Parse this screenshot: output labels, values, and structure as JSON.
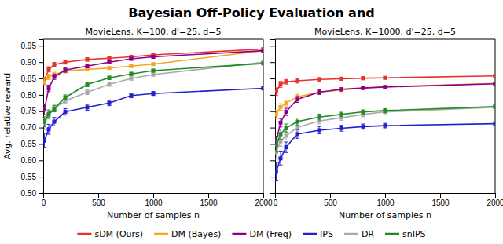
{
  "chart_data": [
    {
      "type": "line",
      "title": "Bayesian Off-Policy Evaluation and",
      "subtitle": "MovieLens, K=100, d'=25, d=5",
      "x_label": "Number of samples n",
      "y_label": "Avg. relative reward",
      "x": [
        10,
        50,
        100,
        200,
        400,
        600,
        800,
        1000,
        2000
      ],
      "xlim": [
        0,
        2000
      ],
      "xticks": [
        0,
        500,
        1000,
        1500,
        2000
      ],
      "ylim": [
        0.5,
        0.97
      ],
      "yticks": [
        {
          "value": 0.5,
          "label": "0.50"
        },
        0.55,
        {
          "value": 0.6,
          "label": "0.60"
        },
        0.65,
        {
          "value": 0.7,
          "label": "0.70"
        },
        0.75,
        {
          "value": 0.8,
          "label": "0.80"
        },
        0.85,
        {
          "value": 0.9,
          "label": "0.90"
        },
        0.95
      ],
      "grid": false,
      "legend": "bottom",
      "marker": "square",
      "series": [
        {
          "name": "sDM (Ours)",
          "color": "#e8312a",
          "values": [
            0.843,
            0.878,
            0.892,
            0.9,
            0.908,
            0.912,
            0.916,
            0.922,
            0.94
          ],
          "errors": [
            0.01,
            0.008,
            0.007,
            0.006,
            0.005,
            0.005,
            0.004,
            0.004,
            0.003
          ]
        },
        {
          "name": "DM (Bayes)",
          "color": "#f5a623",
          "values": [
            0.838,
            0.855,
            0.862,
            0.873,
            0.878,
            0.882,
            0.888,
            0.894,
            0.935
          ],
          "errors": [
            0.01,
            0.008,
            0.007,
            0.006,
            0.005,
            0.004,
            0.004,
            0.003,
            0.003
          ]
        },
        {
          "name": "DM (Freq)",
          "color": "#8b008b",
          "values": [
            0.755,
            0.82,
            0.855,
            0.876,
            0.888,
            0.9,
            0.91,
            0.916,
            0.935
          ],
          "errors": [
            0.015,
            0.01,
            0.008,
            0.007,
            0.005,
            0.004,
            0.004,
            0.003,
            0.003
          ]
        },
        {
          "name": "IPS",
          "color": "#2222cc",
          "values": [
            0.66,
            0.695,
            0.718,
            0.748,
            0.762,
            0.775,
            0.798,
            0.804,
            0.82
          ],
          "errors": [
            0.022,
            0.015,
            0.013,
            0.01,
            0.009,
            0.008,
            0.007,
            0.006,
            0.005
          ]
        },
        {
          "name": "DR",
          "color": "#aaaaaa",
          "values": [
            0.71,
            0.738,
            0.758,
            0.782,
            0.808,
            0.832,
            0.85,
            0.862,
            0.9
          ],
          "errors": [
            0.016,
            0.012,
            0.01,
            0.008,
            0.007,
            0.006,
            0.005,
            0.005,
            0.004
          ]
        },
        {
          "name": "snIPS",
          "color": "#228b22",
          "values": [
            0.718,
            0.742,
            0.758,
            0.792,
            0.832,
            0.852,
            0.864,
            0.874,
            0.896
          ],
          "errors": [
            0.015,
            0.012,
            0.01,
            0.008,
            0.007,
            0.005,
            0.005,
            0.004,
            0.003
          ]
        }
      ]
    },
    {
      "type": "line",
      "subtitle": "MovieLens, K=1000, d'=25, d=5",
      "x_label": "Number of samples n",
      "x": [
        10,
        50,
        100,
        200,
        400,
        600,
        800,
        1000,
        2000
      ],
      "xlim": [
        0,
        2000
      ],
      "xticks": [
        0,
        500,
        1000,
        1500,
        2000
      ],
      "ylim": [
        0.5,
        0.97
      ],
      "yticks": [
        0.5,
        0.55,
        0.6,
        0.65,
        0.7,
        0.75,
        0.8,
        0.85,
        0.9,
        0.95
      ],
      "tick_labels": "x",
      "grid": false,
      "marker": "square",
      "series": [
        {
          "name": "sDM (Ours)",
          "color": "#e8312a",
          "values": [
            0.81,
            0.832,
            0.84,
            0.843,
            0.847,
            0.849,
            0.851,
            0.852,
            0.858
          ],
          "errors": [
            0.012,
            0.009,
            0.007,
            0.007,
            0.006,
            0.005,
            0.005,
            0.004,
            0.003
          ]
        },
        {
          "name": "DM (Bayes)",
          "color": "#f5a623",
          "values": [
            0.74,
            0.763,
            0.775,
            0.794,
            0.808,
            0.815,
            0.82,
            0.825,
            0.835
          ],
          "errors": [
            0.013,
            0.01,
            0.009,
            0.008,
            0.006,
            0.005,
            0.005,
            0.004,
            0.003
          ]
        },
        {
          "name": "DM (Freq)",
          "color": "#8b008b",
          "values": [
            0.658,
            0.715,
            0.748,
            0.786,
            0.808,
            0.817,
            0.821,
            0.824,
            0.834
          ],
          "errors": [
            0.016,
            0.013,
            0.011,
            0.009,
            0.007,
            0.005,
            0.004,
            0.004,
            0.003
          ]
        },
        {
          "name": "IPS",
          "color": "#2222cc",
          "values": [
            0.565,
            0.606,
            0.64,
            0.68,
            0.692,
            0.698,
            0.703,
            0.706,
            0.712
          ],
          "errors": [
            0.028,
            0.02,
            0.016,
            0.013,
            0.011,
            0.009,
            0.008,
            0.007,
            0.006
          ]
        },
        {
          "name": "DR",
          "color": "#aaaaaa",
          "values": [
            0.625,
            0.658,
            0.675,
            0.7,
            0.72,
            0.73,
            0.74,
            0.748,
            0.762
          ],
          "errors": [
            0.02,
            0.015,
            0.013,
            0.011,
            0.009,
            0.008,
            0.007,
            0.006,
            0.005
          ]
        },
        {
          "name": "snIPS",
          "color": "#228b22",
          "values": [
            0.645,
            0.68,
            0.698,
            0.718,
            0.732,
            0.74,
            0.748,
            0.752,
            0.764
          ],
          "errors": [
            0.02,
            0.015,
            0.013,
            0.011,
            0.009,
            0.007,
            0.006,
            0.006,
            0.005
          ]
        }
      ]
    }
  ]
}
